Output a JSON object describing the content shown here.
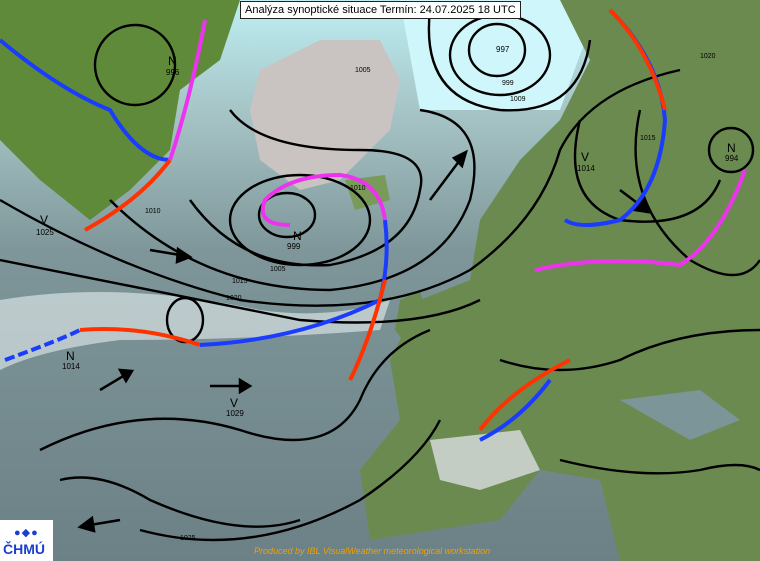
{
  "header": {
    "title": "Analýza synoptické situace Termín: 24.07.2025 18 UTC"
  },
  "footer": {
    "credit": "Produced by IBL VisualWeather meteorological workstation"
  },
  "logo": {
    "text": "ČHMÚ"
  },
  "colors": {
    "cold_front": "#1a3cff",
    "warm_front": "#ff3300",
    "occluded_front": "#ee33ee",
    "isobar": "#000000"
  },
  "pressure_centers": [
    {
      "type": "V",
      "value": "1025"
    },
    {
      "type": "N",
      "value": "1014"
    },
    {
      "type": "V",
      "value": "1029"
    },
    {
      "type": "N",
      "value": "999"
    },
    {
      "type": "V",
      "value": "1014"
    },
    {
      "type": "N",
      "value": "994"
    },
    {
      "type": "N",
      "value": "996"
    },
    {
      "type": "",
      "value": "997"
    }
  ],
  "isobar_labels": [
    "1005",
    "1010",
    "1015",
    "1020",
    "1025",
    "999",
    "1009",
    "1005",
    "1010",
    "1015",
    "1020"
  ]
}
